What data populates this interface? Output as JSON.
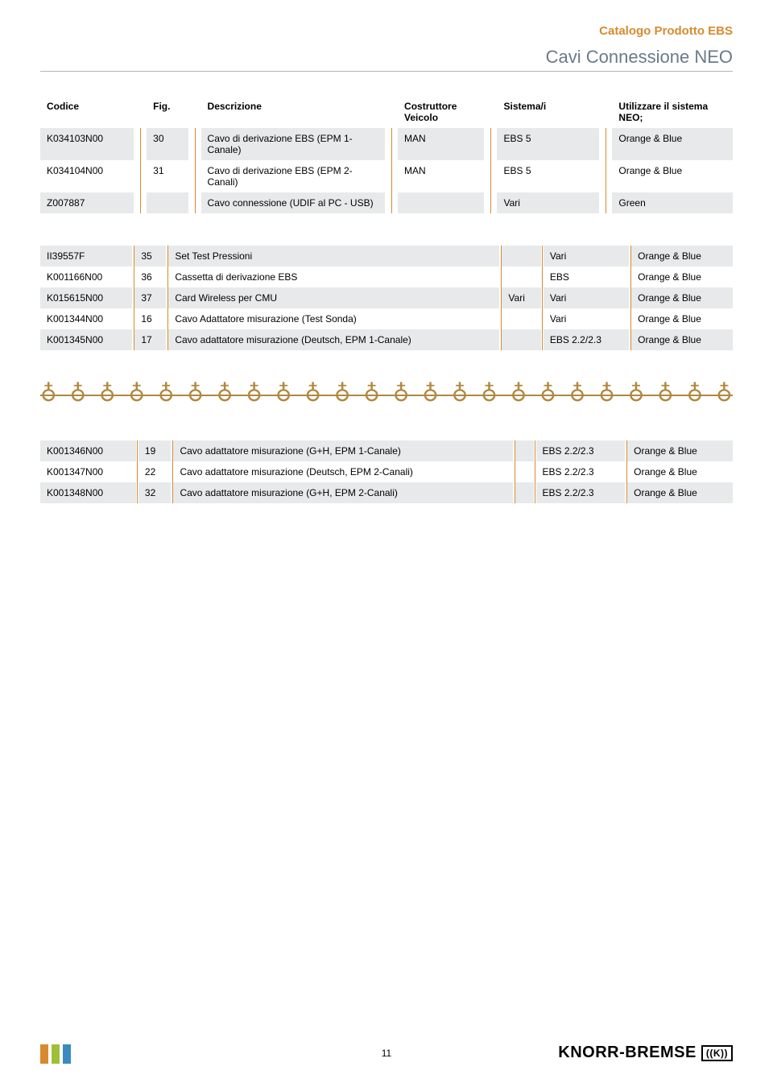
{
  "header": {
    "catalog": "Catalogo Prodotto EBS",
    "section": "Cavi Connessione NEO",
    "catalog_color": "#d88a2e",
    "section_color": "#6a7a8a"
  },
  "table_header": {
    "codice": "Codice",
    "fig": "Fig.",
    "descrizione": "Descrizione",
    "costruttore": "Costruttore Veicolo",
    "sistema": "Sistema/i",
    "utilizzare": "Utilizzare il sistema NEO;"
  },
  "table1": {
    "rows": [
      {
        "codice": "K034103N00",
        "fig": "30",
        "desc": "Cavo di derivazione EBS (EPM 1-Canale)",
        "costr": "MAN",
        "sys": "EBS 5",
        "util": "Orange & Blue"
      },
      {
        "codice": "K034104N00",
        "fig": "31",
        "desc": "Cavo di derivazione EBS (EPM 2-Canali)",
        "costr": "MAN",
        "sys": "EBS 5",
        "util": "Orange & Blue"
      },
      {
        "codice": "Z007887",
        "fig": "",
        "desc": "Cavo connessione (UDIF al PC - USB)",
        "costr": "",
        "sys": "Vari",
        "util": "Green"
      }
    ]
  },
  "table2": {
    "rows": [
      {
        "codice": "II39557F",
        "fig": "35",
        "desc": "Set Test Pressioni",
        "costr": "",
        "sys": "Vari",
        "util": "Orange & Blue"
      },
      {
        "codice": "K001166N00",
        "fig": "36",
        "desc": "Cassetta di derivazione EBS",
        "costr": "",
        "sys": "EBS",
        "util": "Orange & Blue"
      },
      {
        "codice": "K015615N00",
        "fig": "37",
        "desc": "Card Wireless per CMU",
        "costr": "Vari",
        "sys": "Vari",
        "util": "Orange & Blue"
      },
      {
        "codice": "K001344N00",
        "fig": "16",
        "desc": "Cavo Adattatore misurazione (Test Sonda)",
        "costr": "",
        "sys": "Vari",
        "util": "Orange & Blue"
      },
      {
        "codice": "K001345N00",
        "fig": "17",
        "desc": "Cavo adattatore misurazione (Deutsch, EPM 1-Canale)",
        "costr": "",
        "sys": "EBS 2.2/2.3",
        "util": "Orange & Blue"
      }
    ]
  },
  "table3": {
    "rows": [
      {
        "codice": "K001346N00",
        "fig": "19",
        "desc": "Cavo adattatore misurazione (G+H, EPM 1-Canale)",
        "costr": "",
        "sys": "EBS 2.2/2.3",
        "util": "Orange & Blue"
      },
      {
        "codice": "K001347N00",
        "fig": "22",
        "desc": "Cavo adattatore misurazione (Deutsch, EPM 2-Canali)",
        "costr": "",
        "sys": "EBS 2.2/2.3",
        "util": "Orange & Blue"
      },
      {
        "codice": "K001348N00",
        "fig": "32",
        "desc": "Cavo adattatore misurazione (G+H, EPM 2-Canali)",
        "costr": "",
        "sys": "EBS 2.2/2.3",
        "util": "Orange & Blue"
      }
    ]
  },
  "chain": {
    "count": 24,
    "glyph": "♁",
    "color": "#b08840"
  },
  "footer": {
    "page": "11",
    "brand": "KNORR-BREMSE",
    "brand_logo": "((K))",
    "mark_colors": [
      "#d88a2e",
      "#9fbf3a",
      "#3a8abf"
    ]
  },
  "styling": {
    "row_alt_bg": "#e8e9ea",
    "row_bg": "#ffffff",
    "separator_color": "#d88a2e",
    "font_size_body": 12,
    "font_size_section": 22,
    "font_size_catalog": 15
  }
}
